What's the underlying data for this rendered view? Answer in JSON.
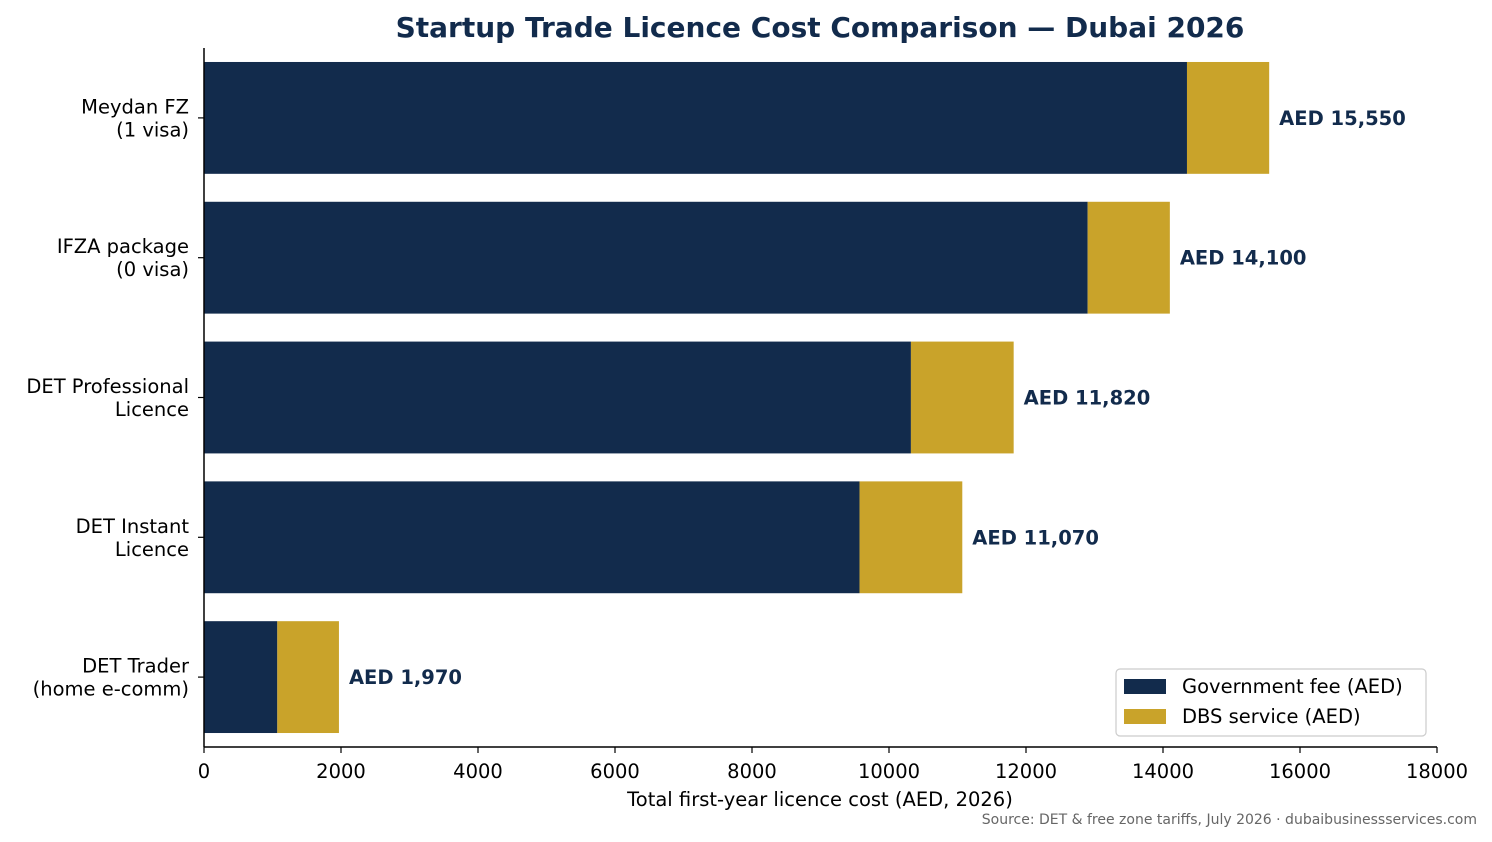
{
  "chart_data": {
    "type": "bar",
    "orientation": "horizontal",
    "stacked": true,
    "title": "Startup Trade Licence Cost Comparison — Dubai 2026",
    "xlabel": "Total first-year licence cost (AED, 2026)",
    "ylabel": "",
    "xlim": [
      0,
      18000
    ],
    "xticks": [
      0,
      2000,
      4000,
      6000,
      8000,
      10000,
      12000,
      14000,
      16000,
      18000
    ],
    "categories": [
      [
        "Meydan FZ",
        "(1 visa)"
      ],
      [
        "IFZA package",
        "(0 visa)"
      ],
      [
        "DET Professional",
        "Licence"
      ],
      [
        "DET Instant",
        "Licence"
      ],
      [
        "DET Trader",
        "(home e-comm)"
      ]
    ],
    "series": [
      {
        "name": "Government fee (AED)",
        "color": "#122b4c",
        "values": [
          14350,
          12900,
          10320,
          9570,
          1070
        ]
      },
      {
        "name": "DBS service (AED)",
        "color": "#c9a32a",
        "values": [
          1200,
          1200,
          1500,
          1500,
          900
        ]
      }
    ],
    "total_labels": [
      "AED 15,550",
      "AED 14,100",
      "AED 11,820",
      "AED 11,070",
      "AED 1,970"
    ],
    "legend_position": "lower-right",
    "grid": false,
    "source_note": "Source: DET & free zone tariffs, July 2026 · dubaibusinessservices.com",
    "colors": {
      "title": "#122b4c",
      "labels": "#122b4c"
    }
  }
}
